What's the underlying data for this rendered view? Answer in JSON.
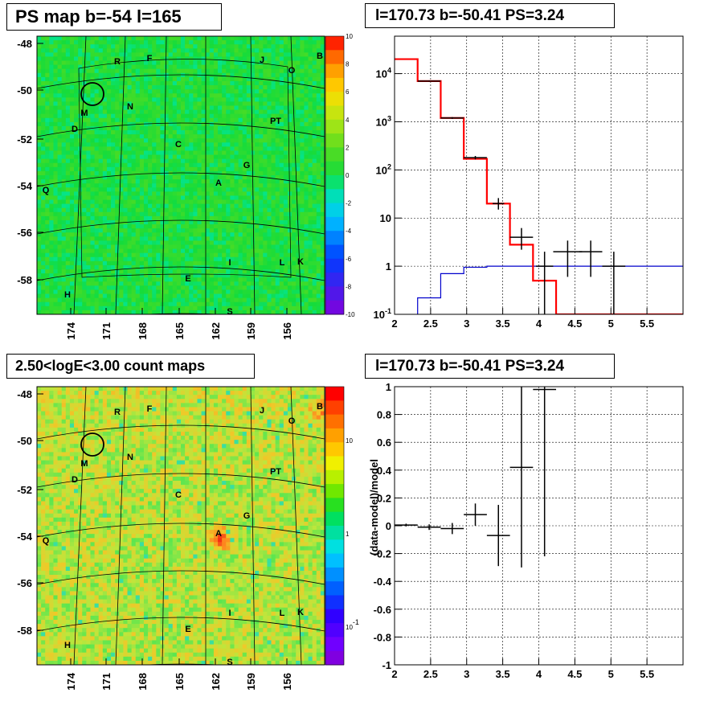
{
  "panels": {
    "ps_map": {
      "title": "PS map b=-54 l=165"
    },
    "spectrum": {
      "title": "l=170.73 b=-50.41 PS=3.24"
    },
    "count_map": {
      "title": "2.50<logE<3.00 count maps"
    },
    "residual": {
      "title": "l=170.73 b=-50.41 PS=3.24"
    }
  },
  "colors": {
    "map_green": "#22dd22",
    "count_yellow": "#c8e63c",
    "model_red": "#ff0000",
    "bkg_blue": "#0000cc",
    "data_black": "#000000"
  },
  "chart_data": [
    {
      "type": "heatmap",
      "name_ref": "ps_map",
      "x_ticks": [
        "174",
        "171",
        "168",
        "165",
        "162",
        "159",
        "156"
      ],
      "y_ticks": [
        "-48",
        "-50",
        "-52",
        "-54",
        "-56",
        "-58"
      ],
      "palette_ticks": [
        "10",
        "8",
        "6",
        "4",
        "2",
        "0",
        "-2",
        "-4",
        "-6",
        "-8",
        "-10"
      ],
      "zlim": [
        -10,
        10
      ],
      "sources": [
        "R",
        "F",
        "J",
        "O",
        "B",
        "M",
        "N",
        "D",
        "PT",
        "C",
        "G",
        "A",
        "Q",
        "I",
        "L",
        "K",
        "E",
        "H",
        "S"
      ]
    },
    {
      "type": "line",
      "name_ref": "spectrum",
      "x_ticks": [
        "2",
        "2.5",
        "3",
        "3.5",
        "4",
        "4.5",
        "5",
        "5.5"
      ],
      "y_ticks": [
        "10^4",
        "10^3",
        "10^2",
        "10",
        "1",
        "10^-1"
      ],
      "xlim": [
        2,
        6
      ],
      "ylim": [
        0.1,
        60000
      ],
      "log_y": true,
      "grid": true,
      "model_total": [
        [
          2.0,
          20000
        ],
        [
          2.32,
          7000
        ],
        [
          2.64,
          1200
        ],
        [
          2.96,
          170
        ],
        [
          3.28,
          20
        ],
        [
          3.6,
          2.8
        ],
        [
          3.92,
          0.5
        ],
        [
          4.24,
          0.1
        ],
        [
          6.0,
          0.1
        ]
      ],
      "model_bkg": [
        [
          2.32,
          0.22
        ],
        [
          2.64,
          0.7
        ],
        [
          2.96,
          0.95
        ],
        [
          3.28,
          1.0
        ],
        [
          6.0,
          1.0
        ]
      ],
      "data": [
        {
          "x": 2.48,
          "y": 7000,
          "ex": 0.16,
          "ylo": 6800,
          "yhi": 7200
        },
        {
          "x": 2.8,
          "y": 1200,
          "ex": 0.16,
          "ylo": 1150,
          "yhi": 1250
        },
        {
          "x": 3.12,
          "y": 180,
          "ex": 0.16,
          "ylo": 165,
          "yhi": 195
        },
        {
          "x": 3.44,
          "y": 20,
          "ex": 0.08,
          "ylo": 15,
          "yhi": 26
        },
        {
          "x": 3.76,
          "y": 4,
          "ex": 0.16,
          "ylo": 2.2,
          "yhi": 6.2
        },
        {
          "x": 4.08,
          "y": 1,
          "ex": 0.12,
          "ylo": 0.1,
          "yhi": 2.0
        },
        {
          "x": 4.4,
          "y": 2,
          "ex": 0.2,
          "ylo": 0.6,
          "yhi": 3.4
        },
        {
          "x": 4.72,
          "y": 2,
          "ex": 0.16,
          "ylo": 0.6,
          "yhi": 3.4
        },
        {
          "x": 5.04,
          "y": 1,
          "ex": 0.16,
          "ylo": 0.1,
          "yhi": 2.0
        }
      ]
    },
    {
      "type": "heatmap",
      "name_ref": "count_map",
      "x_ticks": [
        "174",
        "171",
        "168",
        "165",
        "162",
        "159",
        "156"
      ],
      "y_ticks": [
        "-48",
        "-50",
        "-52",
        "-54",
        "-56",
        "-58"
      ],
      "palette_ticks": [
        "10",
        "1",
        "10^-1"
      ],
      "log_z": true,
      "sources": [
        "R",
        "F",
        "J",
        "O",
        "B",
        "M",
        "N",
        "D",
        "PT",
        "C",
        "G",
        "A",
        "Q",
        "I",
        "L",
        "K",
        "E",
        "H",
        "S"
      ]
    },
    {
      "type": "scatter",
      "name_ref": "residual",
      "x_ticks": [
        "2",
        "2.5",
        "3",
        "3.5",
        "4",
        "4.5",
        "5",
        "5.5"
      ],
      "y_ticks": [
        "1",
        "0.8",
        "0.6",
        "0.4",
        "0.2",
        "0",
        "-0.2",
        "-0.4",
        "-0.6",
        "-0.8",
        "-1"
      ],
      "xlim": [
        2,
        6
      ],
      "ylim": [
        -1,
        1
      ],
      "grid": true,
      "ylabel": "(data-model)/model",
      "data": [
        {
          "x": 2.16,
          "y": 0.005,
          "ex": 0.16,
          "ey": 0.01
        },
        {
          "x": 2.48,
          "y": -0.01,
          "ex": 0.16,
          "ey": 0.02
        },
        {
          "x": 2.8,
          "y": -0.02,
          "ex": 0.16,
          "ey": 0.04
        },
        {
          "x": 3.12,
          "y": 0.08,
          "ex": 0.16,
          "ey": 0.08
        },
        {
          "x": 3.44,
          "y": -0.07,
          "ex": 0.16,
          "ey": 0.22
        },
        {
          "x": 3.76,
          "y": 0.42,
          "ex": 0.16,
          "ey": 0.72
        },
        {
          "x": 4.08,
          "y": 0.98,
          "ex": 0.16,
          "ey": 1.2
        }
      ]
    }
  ]
}
